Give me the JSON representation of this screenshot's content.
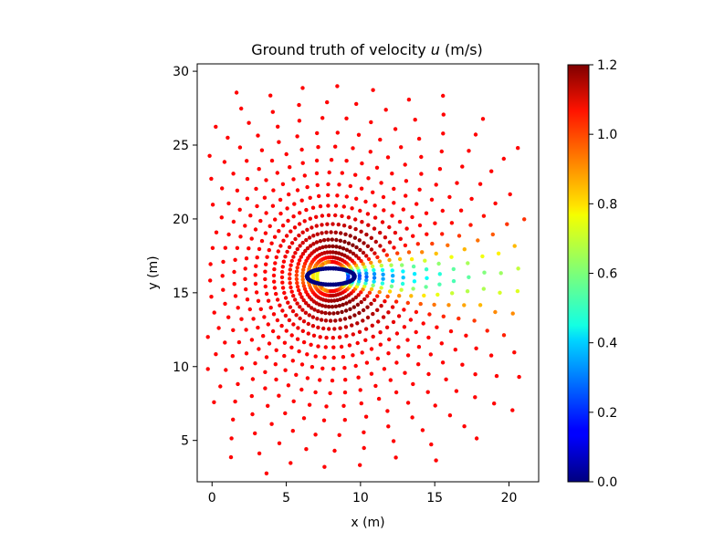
{
  "chart_data": {
    "type": "scatter",
    "title_prefix": "Ground truth of velocity ",
    "title_var": "u",
    "title_suffix": " (m/s)",
    "xlabel": "x (m)",
    "ylabel": "y (m)",
    "xlim": [
      -1,
      22
    ],
    "ylim": [
      2.2,
      30.5
    ],
    "xticks": [
      0,
      5,
      10,
      15,
      20
    ],
    "yticks": [
      5,
      10,
      15,
      20,
      25,
      30
    ],
    "colorbar": {
      "colormap": "jet",
      "range": [
        0.0,
        1.2
      ],
      "ticks": [
        0.0,
        0.2,
        0.4,
        0.6,
        0.8,
        1.0,
        1.2
      ],
      "tick_labels": [
        "0.0",
        "0.2",
        "0.4",
        "0.6",
        "0.8",
        "1.0",
        "1.2"
      ]
    },
    "obstacle": {
      "cx": 8.0,
      "cy": 16.1,
      "rx": 1.6,
      "ry": 0.55
    },
    "field": {
      "description_of_values": "u sampled on polar-like rings around the obstacle",
      "freestream_u": 1.05,
      "rings": [
        {
          "r": 1.0,
          "n": 52
        },
        {
          "r": 1.3,
          "n": 54
        },
        {
          "r": 1.65,
          "n": 56
        },
        {
          "r": 2.05,
          "n": 58
        },
        {
          "r": 2.5,
          "n": 60
        },
        {
          "r": 3.0,
          "n": 62
        },
        {
          "r": 3.55,
          "n": 62
        },
        {
          "r": 4.15,
          "n": 62
        },
        {
          "r": 4.8,
          "n": 60
        },
        {
          "r": 5.5,
          "n": 58
        },
        {
          "r": 6.25,
          "n": 56
        },
        {
          "r": 7.05,
          "n": 54
        },
        {
          "r": 7.9,
          "n": 52
        },
        {
          "r": 8.8,
          "n": 50
        },
        {
          "r": 9.75,
          "n": 46
        },
        {
          "r": 10.75,
          "n": 44
        },
        {
          "r": 11.8,
          "n": 40
        },
        {
          "r": 12.9,
          "n": 36
        },
        {
          "r": 14.0,
          "n": 32
        }
      ]
    }
  }
}
